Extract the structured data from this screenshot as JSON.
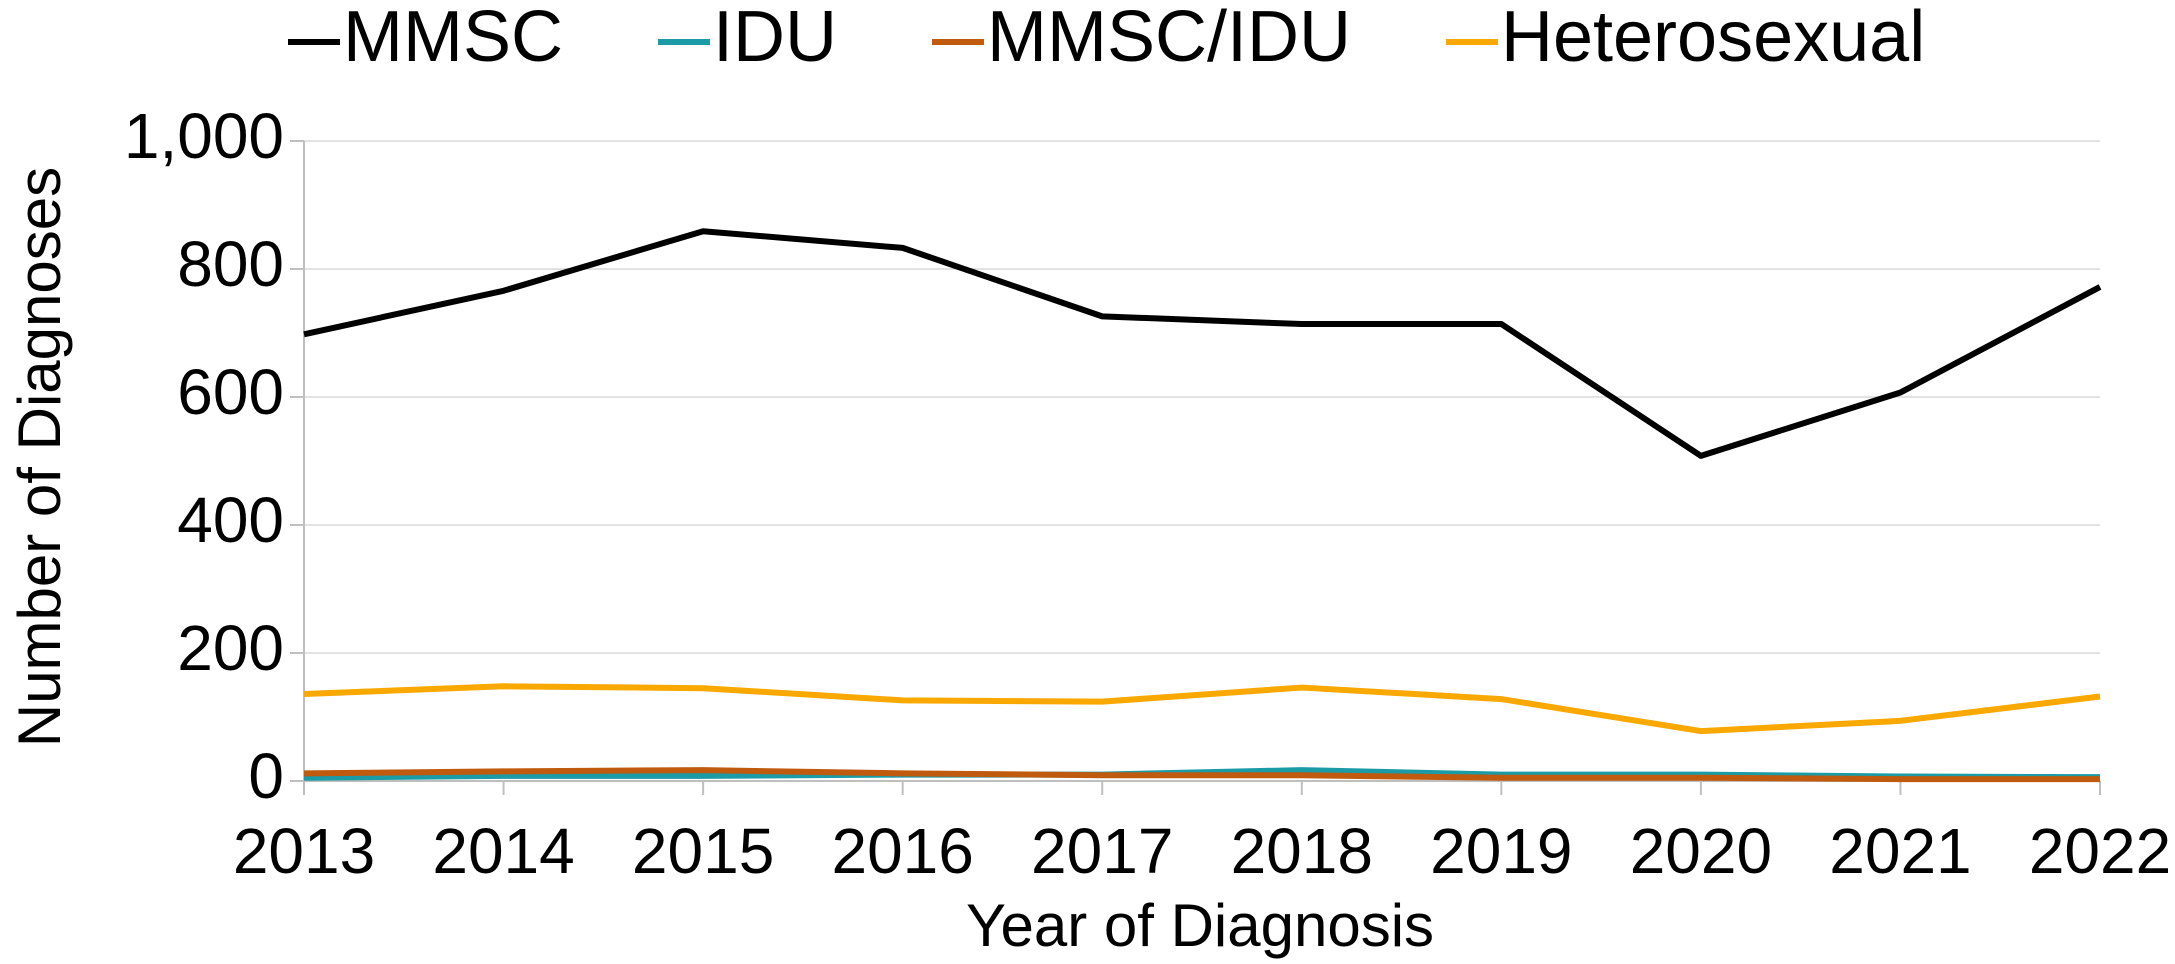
{
  "chart_data": {
    "type": "line",
    "x_label": "Year of Diagnosis",
    "y_label": "Number of Diagnoses",
    "categories": [
      "2013",
      "2014",
      "2015",
      "2016",
      "2017",
      "2018",
      "2019",
      "2020",
      "2021",
      "2022"
    ],
    "series": [
      {
        "name": "MMSC",
        "color": "#000000",
        "values": [
          698,
          766,
          859,
          833,
          726,
          714,
          714,
          508,
          607,
          772
        ]
      },
      {
        "name": "IDU",
        "color": "#1a9ba6",
        "values": [
          5,
          8,
          8,
          10,
          10,
          17,
          10,
          10,
          7,
          6
        ]
      },
      {
        "name": "MMSC/IDU",
        "color": "#c05a0e",
        "values": [
          12,
          15,
          17,
          12,
          9,
          9,
          5,
          5,
          3,
          3
        ]
      },
      {
        "name": "Heterosexual",
        "color": "#f9a800",
        "values": [
          136,
          148,
          145,
          126,
          124,
          146,
          128,
          78,
          94,
          132
        ]
      }
    ],
    "ylim": [
      0,
      1000
    ],
    "yticks": [
      0,
      200,
      400,
      600,
      800,
      {
        "value": 1000,
        "label": "1,000"
      }
    ],
    "grid": true,
    "legend": "top"
  }
}
